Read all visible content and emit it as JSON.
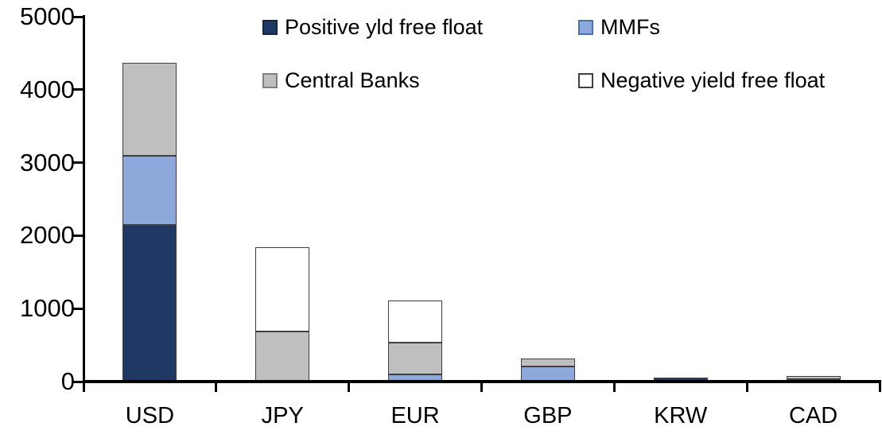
{
  "chart_data": {
    "type": "bar",
    "variant": "stacked-vertical",
    "title": "",
    "xlabel": "",
    "ylabel": "",
    "categories": [
      "USD",
      "JPY",
      "EUR",
      "GBP",
      "KRW",
      "CAD"
    ],
    "series": [
      {
        "name": "Positive yld free float",
        "color": "#1F3864",
        "marker_border": "#14243f",
        "values": [
          2150,
          0,
          0,
          0,
          50,
          35
        ]
      },
      {
        "name": "MMFs",
        "color": "#8DA9DC",
        "marker_border": "#4a70b8",
        "values": [
          940,
          0,
          100,
          210,
          0,
          0
        ]
      },
      {
        "name": "Central Banks",
        "color": "#BFBFBF",
        "marker_border": "#7f7f7f",
        "values": [
          1280,
          690,
          430,
          110,
          0,
          40
        ]
      },
      {
        "name": "Negative yield free float",
        "color": "#FFFFFF",
        "marker_border": "#404040",
        "values": [
          0,
          1150,
          580,
          0,
          0,
          0
        ]
      }
    ],
    "totals": [
      4370,
      1840,
      1110,
      320,
      50,
      75
    ],
    "ylim": [
      0,
      5000
    ],
    "yticks": [
      0,
      1000,
      2000,
      3000,
      4000,
      5000
    ],
    "ytick_labels": [
      "0",
      "1000",
      "2000",
      "3000",
      "4000",
      "5000"
    ],
    "grid": false,
    "legend_position": "top-inside-two-rows",
    "axis_color": "#000000",
    "segment_border_color": "#3f3f3f",
    "background_color": "#ffffff"
  }
}
